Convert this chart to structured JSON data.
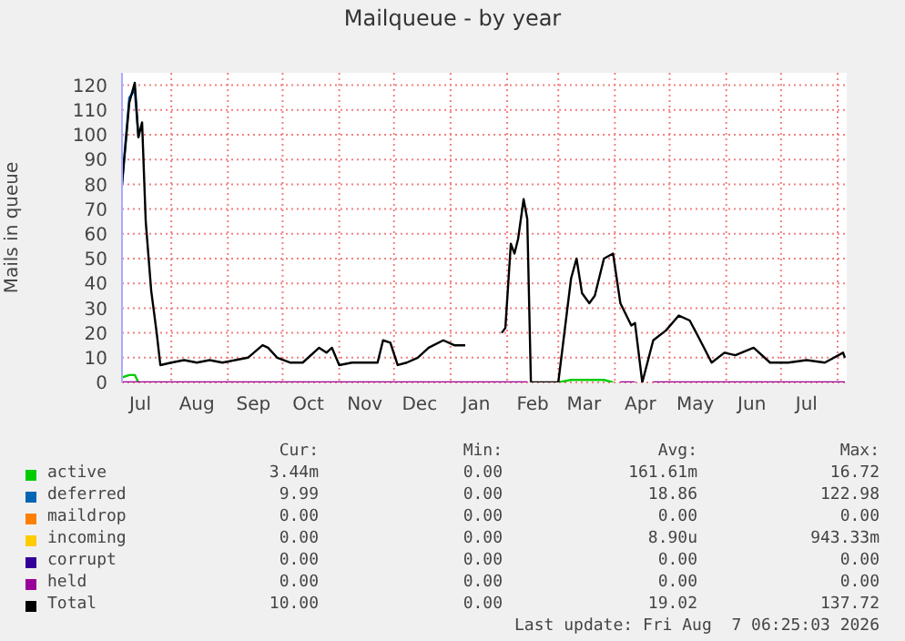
{
  "chart_data": {
    "type": "line",
    "title": "Mailqueue - by year",
    "ylabel": "Mails in queue",
    "x": [
      "2025-07-05",
      "2025-07-09",
      "2025-07-12",
      "2025-07-14",
      "2025-07-16",
      "2025-07-18",
      "2025-07-21",
      "2025-07-24",
      "2025-07-26",
      "2025-08-01",
      "2025-08-08",
      "2025-08-15",
      "2025-08-22",
      "2025-08-29",
      "2025-09-05",
      "2025-09-12",
      "2025-09-20",
      "2025-09-23",
      "2025-09-28",
      "2025-10-05",
      "2025-10-12",
      "2025-10-21",
      "2025-10-25",
      "2025-10-28",
      "2025-11-01",
      "2025-11-08",
      "2025-11-15",
      "2025-11-22",
      "2025-11-25",
      "2025-11-29",
      "2025-12-03",
      "2025-12-08",
      "2025-12-14",
      "2025-12-20",
      "2025-12-28",
      "2026-01-03",
      "2026-01-09",
      "2026-01-19",
      "2026-01-29",
      "2026-01-31",
      "2026-02-03",
      "2026-02-05",
      "2026-02-07",
      "2026-02-10",
      "2026-02-12",
      "2026-02-14",
      "2026-03-01",
      "2026-03-08",
      "2026-03-11",
      "2026-03-14",
      "2026-03-18",
      "2026-03-21",
      "2026-03-26",
      "2026-03-31",
      "2026-04-04",
      "2026-04-10",
      "2026-04-12",
      "2026-04-16",
      "2026-04-22",
      "2026-04-29",
      "2026-05-06",
      "2026-05-12",
      "2026-05-17",
      "2026-05-24",
      "2026-05-31",
      "2026-06-06",
      "2026-06-16",
      "2026-06-25",
      "2026-07-05",
      "2026-07-15",
      "2026-07-25",
      "2026-08-04",
      "2026-08-05"
    ],
    "series": [
      {
        "name": "active",
        "color": "#00cc00",
        "values": [
          2,
          3,
          3,
          0,
          null,
          null,
          null,
          null,
          null,
          null,
          null,
          null,
          null,
          null,
          null,
          null,
          null,
          null,
          null,
          null,
          null,
          null,
          null,
          null,
          null,
          null,
          null,
          null,
          null,
          null,
          null,
          null,
          null,
          null,
          null,
          null,
          null,
          null,
          null,
          null,
          null,
          null,
          null,
          null,
          null,
          null,
          0,
          1,
          1,
          1,
          1,
          1,
          1,
          0,
          null,
          null,
          null,
          null,
          null,
          null,
          null,
          null,
          null,
          null,
          null,
          null,
          null,
          null,
          null,
          null,
          null,
          null,
          null
        ]
      },
      {
        "name": "deferred",
        "color": "#0066b3",
        "values": [
          80,
          115,
          118,
          99,
          null,
          null,
          null,
          null,
          null,
          null,
          null,
          null,
          null,
          null,
          null,
          null,
          null,
          null,
          null,
          null,
          null,
          null,
          null,
          null,
          null,
          null,
          null,
          null,
          null,
          null,
          null,
          null,
          null,
          null,
          null,
          null,
          null,
          null,
          null,
          null,
          null,
          null,
          null,
          null,
          null,
          null,
          null,
          null,
          null,
          null,
          null,
          null,
          null,
          null,
          null,
          null,
          null,
          null,
          null,
          null,
          null,
          null,
          null,
          null,
          null,
          null,
          null,
          null,
          null,
          null,
          null,
          null,
          null
        ]
      },
      {
        "name": "maildrop",
        "color": "#ff8000",
        "values": [
          null,
          null,
          null,
          null,
          null,
          null,
          null,
          null,
          null,
          null,
          null,
          null,
          null,
          null,
          null,
          null,
          null,
          null,
          null,
          null,
          null,
          null,
          null,
          null,
          null,
          null,
          null,
          null,
          null,
          null,
          null,
          null,
          null,
          null,
          null,
          null,
          null,
          null,
          null,
          null,
          null,
          null,
          null,
          null,
          null,
          null,
          null,
          null,
          null,
          null,
          null,
          null,
          null,
          null,
          null,
          null,
          null,
          null,
          null,
          null,
          null,
          null,
          null,
          null,
          null,
          null,
          null,
          null,
          null,
          null,
          null,
          null,
          null
        ]
      },
      {
        "name": "incoming",
        "color": "#ffcc00",
        "values": [
          null,
          null,
          null,
          null,
          null,
          null,
          null,
          null,
          null,
          null,
          null,
          null,
          null,
          null,
          null,
          null,
          null,
          null,
          null,
          null,
          null,
          null,
          null,
          null,
          null,
          null,
          null,
          null,
          null,
          null,
          null,
          null,
          null,
          null,
          null,
          null,
          null,
          null,
          null,
          null,
          null,
          null,
          null,
          null,
          null,
          null,
          null,
          null,
          null,
          null,
          null,
          null,
          null,
          null,
          null,
          null,
          null,
          null,
          null,
          null,
          null,
          null,
          null,
          null,
          null,
          null,
          null,
          null,
          null,
          null,
          null,
          null,
          null
        ]
      },
      {
        "name": "corrupt",
        "color": "#330099",
        "values": [
          null,
          null,
          null,
          null,
          null,
          null,
          null,
          null,
          null,
          null,
          null,
          null,
          null,
          null,
          null,
          null,
          null,
          null,
          null,
          null,
          null,
          null,
          null,
          null,
          null,
          null,
          null,
          null,
          null,
          null,
          null,
          null,
          null,
          null,
          null,
          null,
          null,
          null,
          null,
          null,
          null,
          null,
          null,
          null,
          null,
          null,
          null,
          null,
          null,
          null,
          null,
          null,
          null,
          null,
          null,
          null,
          null,
          null,
          null,
          null,
          null,
          null,
          null,
          null,
          null,
          null,
          null,
          null,
          null,
          null,
          null,
          null,
          null
        ]
      },
      {
        "name": "held",
        "color": "#990099",
        "values": [
          0,
          0,
          0,
          0,
          0,
          0,
          0,
          0,
          0,
          0,
          0,
          0,
          0,
          0,
          0,
          0,
          0,
          0,
          0,
          0,
          0,
          0,
          0,
          0,
          0,
          0,
          0,
          0,
          0,
          0,
          0,
          0,
          0,
          0,
          0,
          0,
          0,
          0,
          0,
          0,
          0,
          0,
          0,
          0,
          0,
          null,
          null,
          null,
          null,
          null,
          null,
          null,
          null,
          null,
          0,
          0,
          0,
          null,
          0,
          0,
          0,
          0,
          0,
          0,
          0,
          0,
          0,
          0,
          0,
          0,
          0,
          0,
          0
        ]
      },
      {
        "name": "Total",
        "color": "#000000",
        "values": [
          80,
          113,
          121,
          99,
          105,
          65,
          37,
          20,
          7,
          8,
          9,
          8,
          9,
          8,
          9,
          10,
          15,
          14,
          10,
          8,
          8,
          14,
          12,
          14,
          7,
          8,
          8,
          8,
          17,
          16,
          7,
          8,
          10,
          14,
          17,
          15,
          15,
          null,
          20,
          22,
          56,
          52,
          58,
          74,
          66,
          0,
          0,
          42,
          50,
          36,
          32,
          35,
          50,
          52,
          32,
          23,
          24,
          0,
          17,
          21,
          27,
          25,
          18,
          8,
          12,
          11,
          14,
          8,
          8,
          9,
          8,
          12,
          10
        ]
      }
    ],
    "xlim": [
      "2025-07-05",
      "2026-08-06"
    ],
    "xticks": [
      {
        "value": "2025-07-15",
        "label": "Jul"
      },
      {
        "value": "2025-08-01",
        "label": null
      },
      {
        "value": "2025-08-15",
        "label": "Aug"
      },
      {
        "value": "2025-09-01",
        "label": null
      },
      {
        "value": "2025-09-15",
        "label": "Sep"
      },
      {
        "value": "2025-10-01",
        "label": null
      },
      {
        "value": "2025-10-15",
        "label": "Oct"
      },
      {
        "value": "2025-11-01",
        "label": null
      },
      {
        "value": "2025-11-15",
        "label": "Nov"
      },
      {
        "value": "2025-12-01",
        "label": null
      },
      {
        "value": "2025-12-15",
        "label": "Dec"
      },
      {
        "value": "2026-01-01",
        "label": null
      },
      {
        "value": "2026-01-15",
        "label": "Jan"
      },
      {
        "value": "2026-02-01",
        "label": null
      },
      {
        "value": "2026-02-15",
        "label": "Feb"
      },
      {
        "value": "2026-03-01",
        "label": null
      },
      {
        "value": "2026-03-15",
        "label": "Mar"
      },
      {
        "value": "2026-04-01",
        "label": null
      },
      {
        "value": "2026-04-15",
        "label": "Apr"
      },
      {
        "value": "2026-05-01",
        "label": null
      },
      {
        "value": "2026-05-15",
        "label": "May"
      },
      {
        "value": "2026-06-01",
        "label": null
      },
      {
        "value": "2026-06-15",
        "label": "Jun"
      },
      {
        "value": "2026-07-01",
        "label": null
      },
      {
        "value": "2026-07-15",
        "label": "Jul"
      },
      {
        "value": "2026-08-01",
        "label": null
      }
    ],
    "ylim": [
      0,
      125
    ],
    "yticks": [
      0,
      10,
      20,
      30,
      40,
      50,
      60,
      70,
      80,
      90,
      100,
      110,
      120
    ],
    "grid": true,
    "legend": "bottom",
    "marker": "none",
    "line_style": "solid",
    "annotations": [
      "Cur:",
      "Min:",
      "Avg:",
      "Max:",
      "3.44m",
      "0.00",
      "161.61m",
      "16.72",
      "9.99",
      "0.00",
      "18.86",
      "122.98",
      "0.00",
      "0.00",
      "0.00",
      "0.00",
      "0.00",
      "0.00",
      "8.90u",
      "943.33m",
      "0.00",
      "0.00",
      "0.00",
      "0.00",
      "0.00",
      "0.00",
      "0.00",
      "0.00",
      "10.00",
      "0.00",
      "19.02",
      "137.72",
      "Last update: Fri Aug  7 06:25:03 2026"
    ]
  }
}
